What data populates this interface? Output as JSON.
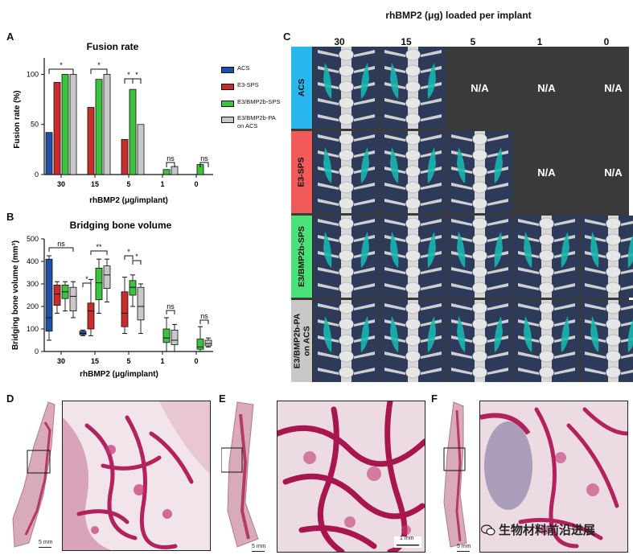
{
  "panels": {
    "a": "A",
    "b": "B",
    "c": "C",
    "d": "D",
    "e": "E",
    "f": "F"
  },
  "legend": {
    "items": [
      {
        "label": "ACS",
        "color": "#1f4fa8"
      },
      {
        "label": "E3-SPS",
        "color": "#cc2b2b"
      },
      {
        "label": "E3/BMP2b-SPS",
        "color": "#3cc43c"
      },
      {
        "label": "E3/BMP2b-PA",
        "label2": "on ACS",
        "color": "#c8c8c8"
      }
    ]
  },
  "chart_data": [
    {
      "type": "bar",
      "title": "Fusion rate",
      "xlabel": "rhBMP2 (μg/implant)",
      "ylabel": "Fusion rate (%)",
      "ylim": [
        0,
        110
      ],
      "yticks": [
        "0",
        "50",
        "100"
      ],
      "categories": [
        "30",
        "15",
        "5",
        "1",
        "0"
      ],
      "series": [
        {
          "name": "ACS",
          "values": [
            42,
            null,
            null,
            null,
            null
          ]
        },
        {
          "name": "E3-SPS",
          "values": [
            92,
            67,
            35,
            null,
            null
          ]
        },
        {
          "name": "E3/BMP2b-SPS",
          "values": [
            100,
            95,
            85,
            5,
            10
          ]
        },
        {
          "name": "E3/BMP2b-PA on ACS",
          "values": [
            100,
            100,
            50,
            8,
            null
          ]
        }
      ],
      "annotations": [
        "*",
        "*",
        "*",
        "*",
        "ns",
        "ns"
      ]
    },
    {
      "type": "box",
      "title": "Bridging bone volume",
      "xlabel": "rhBMP2 (μg/implant)",
      "ylabel": "Bridging bone volume (mm³)",
      "ylim": [
        0,
        500
      ],
      "yticks": [
        "0",
        "100",
        "200",
        "300",
        "400",
        "500"
      ],
      "categories": [
        "30",
        "15",
        "5",
        "1",
        "0"
      ],
      "series": [
        {
          "name": "ACS",
          "boxes": [
            [
              50,
              90,
              150,
              410,
              425
            ],
            [
              70,
              75,
              80,
              90,
              95
            ],
            null,
            null,
            null
          ]
        },
        {
          "name": "E3-SPS",
          "boxes": [
            [
              170,
              205,
              255,
              295,
              310
            ],
            [
              70,
              100,
              180,
              215,
              320
            ],
            [
              80,
              110,
              170,
              265,
              330
            ],
            null,
            null
          ]
        },
        {
          "name": "E3/BMP2b-SPS",
          "boxes": [
            [
              180,
              235,
              265,
              295,
              310
            ],
            [
              170,
              230,
              305,
              370,
              410
            ],
            [
              200,
              250,
              285,
              315,
              340
            ],
            [
              0,
              40,
              60,
              100,
              150
            ],
            [
              0,
              10,
              20,
              55,
              110
            ]
          ]
        },
        {
          "name": "E3/BMP2b-PA on ACS",
          "boxes": [
            [
              150,
              180,
              245,
              285,
              310
            ],
            [
              220,
              280,
              340,
              380,
              410
            ],
            [
              80,
              140,
              200,
              285,
              300
            ],
            [
              0,
              30,
              50,
              95,
              120
            ],
            [
              20,
              25,
              35,
              50,
              60
            ]
          ]
        }
      ],
      "annotations": [
        "ns",
        "*",
        "**",
        "*",
        "*",
        "ns",
        "ns"
      ]
    }
  ],
  "panel_c": {
    "title": "rhBMP2 (μg) loaded per implant",
    "columns": [
      "30",
      "15",
      "5",
      "1",
      "0"
    ],
    "rows": [
      {
        "label": "ACS",
        "color": "#29b6ee",
        "cells": [
          "img",
          "img",
          "N/A",
          "N/A",
          "N/A"
        ]
      },
      {
        "label": "E3-SPS",
        "color": "#f05a5a",
        "cells": [
          "img",
          "img",
          "img",
          "N/A",
          "N/A"
        ]
      },
      {
        "label": "E3/BMP2b-SPS",
        "color": "#4be07a",
        "cells": [
          "img",
          "img",
          "img",
          "img",
          "img"
        ]
      },
      {
        "label": "E3/BMP2b-PA",
        "label2": "on ACS",
        "color": "#c8c8c8",
        "cells": [
          "img",
          "img",
          "img",
          "img",
          "img"
        ]
      }
    ]
  },
  "histology": {
    "scale_5mm": "5 mm",
    "scale_1mm": "1 mm",
    "watermark": "生物材料前沿进展"
  }
}
